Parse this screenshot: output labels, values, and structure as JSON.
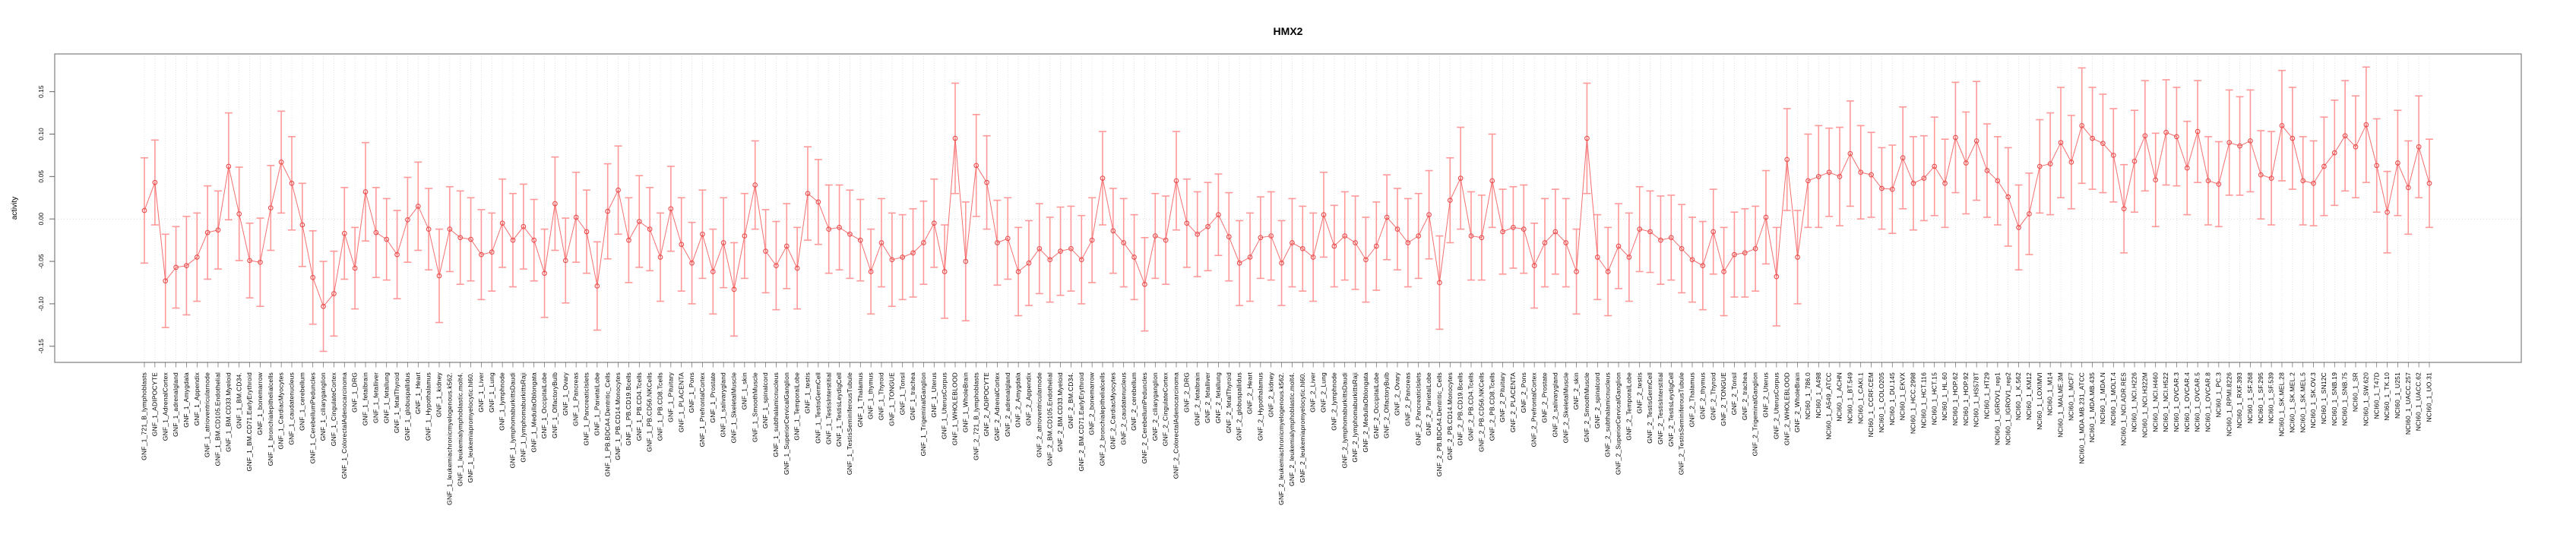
{
  "figure": {
    "background": "#ffffff"
  },
  "chart_data": {
    "type": "line",
    "subtype": "points-with-error-bars",
    "title": "HMX2",
    "xlabel": "",
    "ylabel": "activity",
    "ylim": [
      -0.169,
      0.194
    ],
    "yticks": [
      0.15,
      0.1,
      0.05,
      0.0,
      -0.05,
      -0.1,
      -0.15
    ],
    "ytick_labels": [
      "0.15",
      "0.10",
      "0.05",
      "0.00",
      "-0.05",
      "-0.10",
      "-0.15"
    ],
    "grid": "vertical dotted gridline per category; dotted horizontal line at y=0",
    "legend_position": "none",
    "gnf_tissues": [
      "721_B_lymphoblasts",
      "ADIPOCYTE",
      "AdrenalCortex",
      "adrenalgland",
      "Amygdala",
      "Appendix",
      "atrioventricularnode",
      "BM.CD105.Endothelial",
      "BM.CD33.Myeloid",
      "BM.CD34.",
      "BM.CD71.EarlyErythroid",
      "bonemarrow",
      "bronchialepithelialcells",
      "CardiacMyocytes",
      "caudatenucleus",
      "cerebellum",
      "CerebellumPeduncles",
      "ciliaryganglion",
      "CingulateCortex",
      "ColorectalAdenocarcinoma",
      "DRG",
      "fetalbrain",
      "fetalliver",
      "fetallung",
      "fetalThyroid",
      "globuspallidus",
      "Heart",
      "Hypothalamus",
      "kidney",
      "leukemiachronicmyelogenous.k562.",
      "leukemialymphoblastic.molt4.",
      "leukemiapromyelocytic.hl60.",
      "Liver",
      "Lung",
      "lymphnode",
      "lymphomaburkittsDaudi",
      "lymphomaburkittsRaji",
      "MedullaOblongata",
      "OccipitalLobe",
      "OlfactoryBulb",
      "Ovary",
      "Pancreas",
      "PancreaticIslets",
      "ParietalLobe",
      "PB.BDCA4.Dentritic_Cells",
      "PB.CD14.Monocytes",
      "PB.CD19.Bcells",
      "PB.CD4.Tcells",
      "PB.CD56.NKCells",
      "PB.CD8.Tcells",
      "Pituitary",
      "PLACENTA",
      "Pons",
      "PrefrontalCortex",
      "Prostate",
      "salivarygland",
      "SkeletalMuscle",
      "skin",
      "SmoothMuscle",
      "spinalcord",
      "subthalamicnucleus",
      "SuperiorCervicalGanglion",
      "TemporalLobe",
      "testis",
      "TestisGermCell",
      "TestisInterstitial",
      "TestisLeydigCell",
      "TestisSeminiferousTubule",
      "Thalamus",
      "thymus",
      "Thyroid",
      "TONGUE",
      "Tonsil",
      "trachea",
      "TrigeminalGanglion",
      "Uterus",
      "UterusCorpus",
      "WHOLEBLOOD",
      "WholeBrain"
    ],
    "nci60_cell_lines": [
      "786.0",
      "A498",
      "A549_ATCC",
      "ACHN",
      "BT.549",
      "CAKI.1",
      "CCRF.CEM",
      "COLO205",
      "DU.145",
      "EKVX",
      "HCC.2998",
      "HCT.116",
      "HCT.15",
      "HL.60",
      "HOP.62",
      "HOP.92",
      "HS578T",
      "HT29",
      "IGROV1_rep1",
      "IGROV1_rep2",
      "K.562",
      "KM12",
      "LOXIMVI",
      "M14",
      "MALME.3M",
      "MCF7",
      "MDA.MB.231_ATCC",
      "MDA.MB.435",
      "MDA.N",
      "MOLT.4",
      "NCI.ADR.RES",
      "NCI.H226",
      "NCI.H322M",
      "NCI.H460",
      "NCI.H522",
      "OVCAR.3",
      "OVCAR.4",
      "OVCAR.5",
      "OVCAR.8",
      "PC.3",
      "RPMI.8226",
      "RXF.393",
      "SF.268",
      "SF.295",
      "SF.539",
      "SK.MEL.28",
      "SK.MEL.2",
      "SK.MEL.5",
      "SK.OV.3",
      "SN12C",
      "SNB.19",
      "SNB.75",
      "SR",
      "SW.620",
      "T47D",
      "TK.10",
      "U251",
      "UACC.257",
      "UACC.62",
      "UO.31"
    ],
    "series": [
      {
        "name": "GNF_1",
        "label_prefix": "GNF_1_",
        "label_set": "gnf_tissues",
        "values": [
          0.01,
          0.043,
          -0.073,
          -0.057,
          -0.055,
          -0.045,
          -0.016,
          -0.013,
          0.062,
          0.006,
          -0.049,
          -0.051,
          0.013,
          0.067,
          0.042,
          -0.007,
          -0.069,
          -0.103,
          -0.088,
          -0.017,
          -0.058,
          0.032,
          -0.016,
          -0.024,
          -0.042,
          -0.001,
          0.015,
          -0.012,
          -0.067,
          -0.012,
          -0.022,
          -0.024,
          -0.042,
          -0.039,
          -0.005,
          -0.025,
          -0.009,
          -0.025,
          -0.064,
          0.018,
          -0.049,
          0.002,
          -0.015,
          -0.079,
          0.009,
          0.034,
          -0.025,
          -0.003,
          -0.012,
          -0.045,
          0.012,
          -0.03,
          -0.052,
          -0.018,
          -0.062,
          -0.028,
          -0.083,
          -0.02,
          0.04,
          -0.038,
          -0.055,
          -0.032,
          -0.058,
          0.03,
          0.02,
          -0.012,
          -0.01,
          -0.018,
          -0.025,
          -0.062,
          -0.028,
          -0.048,
          -0.045,
          -0.04,
          -0.028,
          -0.005,
          -0.062,
          0.095,
          -0.05
        ],
        "errors": [
          0.062,
          0.05,
          0.055,
          0.048,
          0.058,
          0.052,
          0.055,
          0.046,
          0.063,
          0.055,
          0.044,
          0.052,
          0.05,
          0.06,
          0.055,
          0.049,
          0.055,
          0.053,
          0.05,
          0.054,
          0.048,
          0.058,
          0.053,
          0.048,
          0.052,
          0.05,
          0.052,
          0.048,
          0.055,
          0.05,
          0.055,
          0.049,
          0.053,
          0.046,
          0.052,
          0.055,
          0.05,
          0.048,
          0.052,
          0.055,
          0.05,
          0.053,
          0.049,
          0.052,
          0.056,
          0.052,
          0.05,
          0.054,
          0.049,
          0.052,
          0.05,
          0.055,
          0.048,
          0.052,
          0.05,
          0.053,
          0.055,
          0.05,
          0.052,
          0.049,
          0.052,
          0.05,
          0.048,
          0.055,
          0.05,
          0.052,
          0.05,
          0.052,
          0.048,
          0.05,
          0.052,
          0.055,
          0.05,
          0.052,
          0.049,
          0.052,
          0.055,
          0.065,
          0.07
        ]
      },
      {
        "name": "GNF_2",
        "label_prefix": "GNF_2_",
        "label_set": "gnf_tissues",
        "values": [
          0.063,
          0.043,
          -0.028,
          -0.023,
          -0.062,
          -0.052,
          -0.035,
          -0.048,
          -0.038,
          -0.035,
          -0.048,
          -0.025,
          0.048,
          -0.014,
          -0.028,
          -0.045,
          -0.077,
          -0.02,
          -0.025,
          0.045,
          -0.005,
          -0.018,
          -0.009,
          0.005,
          -0.021,
          -0.052,
          -0.045,
          -0.022,
          -0.02,
          -0.052,
          -0.028,
          -0.035,
          -0.045,
          0.005,
          -0.032,
          -0.02,
          -0.028,
          -0.048,
          -0.032,
          0.002,
          -0.012,
          -0.028,
          -0.02,
          0.005,
          -0.075,
          0.022,
          0.048,
          -0.02,
          -0.022,
          0.045,
          -0.015,
          -0.01,
          -0.012,
          -0.055,
          -0.028,
          -0.015,
          -0.028,
          -0.062,
          0.095,
          -0.045,
          -0.062,
          -0.032,
          -0.045,
          -0.012,
          -0.015,
          -0.025,
          -0.022,
          -0.035,
          -0.048,
          -0.055,
          -0.015,
          -0.062,
          -0.042,
          -0.04,
          -0.035,
          0.002,
          -0.068,
          0.07,
          -0.045
        ],
        "errors": [
          0.06,
          0.055,
          0.05,
          0.048,
          0.052,
          0.05,
          0.053,
          0.05,
          0.052,
          0.05,
          0.052,
          0.05,
          0.055,
          0.05,
          0.052,
          0.05,
          0.055,
          0.05,
          0.052,
          0.058,
          0.052,
          0.05,
          0.052,
          0.048,
          0.052,
          0.05,
          0.052,
          0.048,
          0.052,
          0.05,
          0.052,
          0.05,
          0.052,
          0.05,
          0.048,
          0.052,
          0.055,
          0.05,
          0.052,
          0.05,
          0.048,
          0.052,
          0.05,
          0.052,
          0.055,
          0.05,
          0.06,
          0.052,
          0.05,
          0.055,
          0.05,
          0.048,
          0.052,
          0.05,
          0.052,
          0.05,
          0.052,
          0.05,
          0.065,
          0.05,
          0.052,
          0.05,
          0.052,
          0.05,
          0.048,
          0.052,
          0.05,
          0.052,
          0.05,
          0.052,
          0.05,
          0.052,
          0.05,
          0.052,
          0.05,
          0.055,
          0.058,
          0.06,
          0.055
        ]
      },
      {
        "name": "NCI60_1",
        "label_prefix": "NCI60_1_",
        "label_set": "nci60_cell_lines",
        "values": [
          0.045,
          0.05,
          0.055,
          0.05,
          0.077,
          0.055,
          0.052,
          0.036,
          0.035,
          0.072,
          0.042,
          0.048,
          0.062,
          0.042,
          0.096,
          0.066,
          0.092,
          0.057,
          0.045,
          0.026,
          -0.01,
          0.006,
          0.062,
          0.065,
          0.09,
          0.067,
          0.11,
          0.095,
          0.089,
          0.075,
          0.012,
          0.068,
          0.098,
          0.046,
          0.102,
          0.097,
          0.06,
          0.103,
          0.045,
          0.041,
          0.09,
          0.086,
          0.092,
          0.052,
          0.048,
          0.11,
          0.095,
          0.045,
          0.042,
          0.062,
          0.078,
          0.098,
          0.085,
          0.111,
          0.063,
          0.008,
          0.066,
          0.037,
          0.085,
          0.042
        ],
        "errors": [
          0.055,
          0.06,
          0.052,
          0.058,
          0.062,
          0.055,
          0.05,
          0.048,
          0.052,
          0.06,
          0.055,
          0.05,
          0.058,
          0.052,
          0.065,
          0.06,
          0.07,
          0.055,
          0.052,
          0.058,
          0.05,
          0.048,
          0.055,
          0.06,
          0.065,
          0.055,
          0.068,
          0.06,
          0.058,
          0.055,
          0.052,
          0.06,
          0.065,
          0.055,
          0.062,
          0.058,
          0.055,
          0.06,
          0.052,
          0.05,
          0.062,
          0.058,
          0.06,
          0.052,
          0.055,
          0.065,
          0.06,
          0.052,
          0.05,
          0.058,
          0.062,
          0.065,
          0.06,
          0.068,
          0.055,
          0.048,
          0.062,
          0.055,
          0.06,
          0.052
        ]
      }
    ],
    "style": {
      "point_color": "#e84c4c",
      "line_color": "#f15f5f",
      "errorbar_color": "#ff9999",
      "grid_color": "#dcdcdc",
      "zero_line_color": "#d9d9d9",
      "axis_color": "#7f7f7f",
      "tick_color": "#666666",
      "text_color": "#000000",
      "background": "#ffffff"
    }
  }
}
